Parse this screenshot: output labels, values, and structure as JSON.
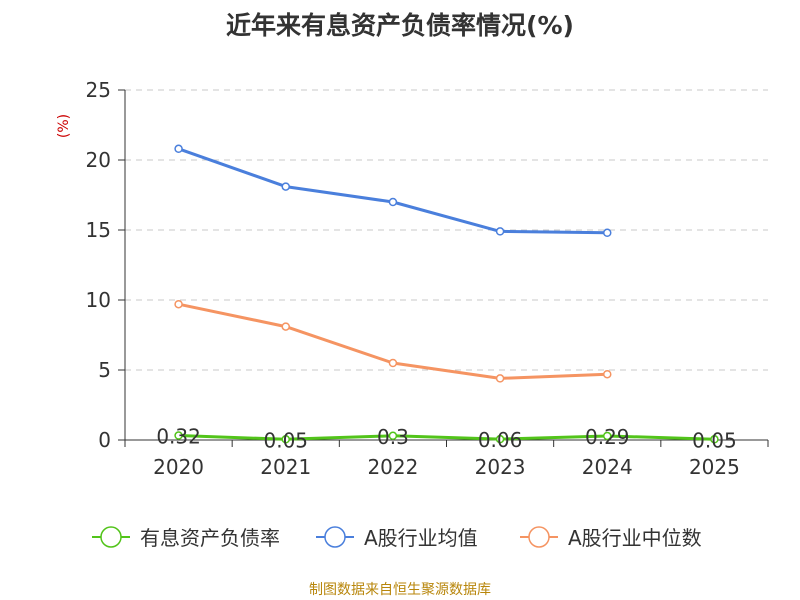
{
  "title": "近年来有息资产负债率情况(%)",
  "source_text": "制图数据来自恒生聚源数据库",
  "chart_data": {
    "type": "line",
    "title": "近年来有息资产负债率情况(%)",
    "y_unit": "(%)",
    "categories": [
      "2020",
      "2021",
      "2022",
      "2023",
      "2024",
      "2025"
    ],
    "ylim": [
      0,
      25
    ],
    "yticks": [
      0,
      5,
      10,
      15,
      20,
      25
    ],
    "grid": true,
    "legend_position": "bottom",
    "series": [
      {
        "name": "有息资产负债率",
        "color": "#52c41a",
        "show_labels": true,
        "labels": [
          "0.32",
          "0.05",
          "0.3",
          "0.06",
          "0.29",
          "0.05"
        ],
        "values": [
          0.32,
          0.05,
          0.3,
          0.06,
          0.29,
          0.05
        ]
      },
      {
        "name": "A股行业均值",
        "color": "#4a7fdc",
        "show_labels": false,
        "values": [
          20.8,
          18.1,
          17.0,
          14.9,
          14.8,
          null
        ]
      },
      {
        "name": "A股行业中位数",
        "color": "#f59462",
        "show_labels": false,
        "values": [
          9.7,
          8.1,
          5.5,
          4.4,
          4.7,
          null
        ]
      }
    ]
  }
}
